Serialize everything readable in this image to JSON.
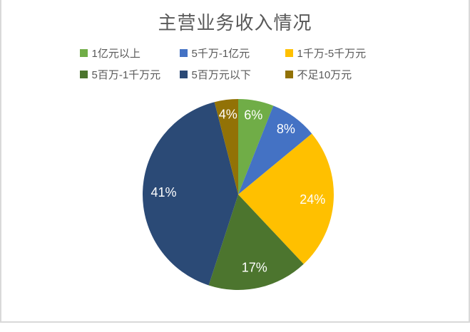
{
  "title": "主营业务收入情况",
  "chart_data": {
    "type": "pie",
    "title": "主营业务收入情况",
    "categories": [
      "1亿元以上",
      "5千万-1亿元",
      "1千万-5千万元",
      "5百万-1千万元",
      "5百万元以下",
      "不足10万元"
    ],
    "values": [
      6,
      8,
      24,
      17,
      41,
      4
    ],
    "data_labels": [
      "6%",
      "8%",
      "24%",
      "17%",
      "41%",
      "4%"
    ],
    "colors": [
      "#70AD47",
      "#4472C4",
      "#FFC000",
      "#4C752E",
      "#2B4A76",
      "#927206"
    ],
    "start_angle_deg": 0,
    "direction": "clockwise",
    "legend_position": "top",
    "legend_items_per_row": 3,
    "data_label_color": "#FFFFFF"
  },
  "styles": {
    "title_color": "#595959",
    "legend_text_color": "#595959",
    "panel_border_color": "#D9D9D9",
    "background_color": "#FFFFFF"
  }
}
